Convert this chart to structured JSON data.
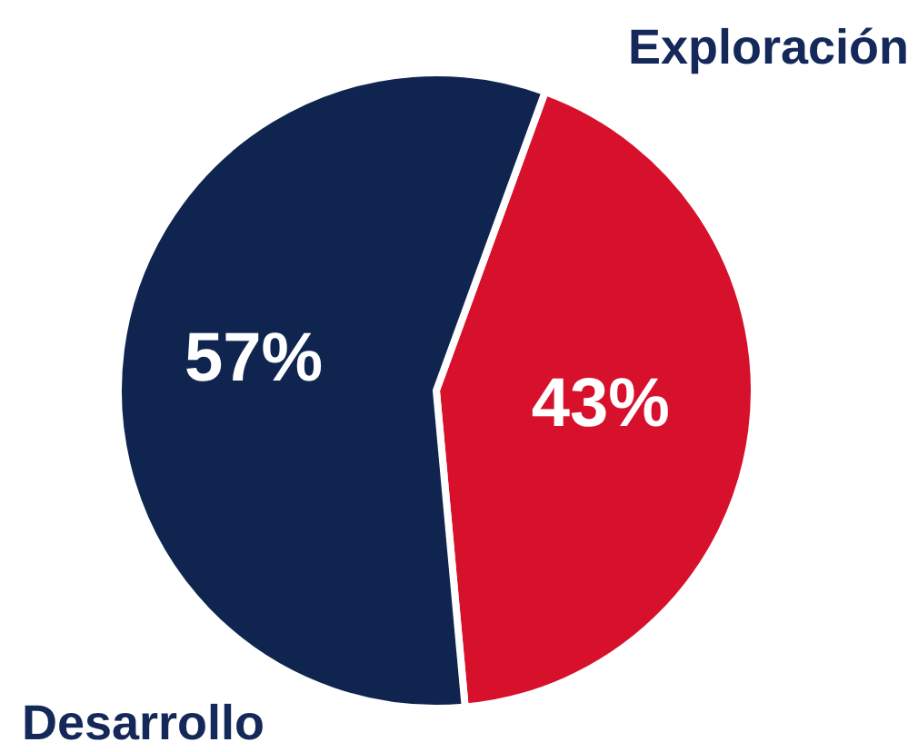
{
  "chart_data": {
    "type": "pie",
    "categories": [
      "Exploración",
      "Desarrollo"
    ],
    "values": [
      43,
      57
    ],
    "colors": [
      "#d7102c",
      "#0f2550"
    ],
    "value_labels": [
      "43%",
      "57%"
    ]
  }
}
